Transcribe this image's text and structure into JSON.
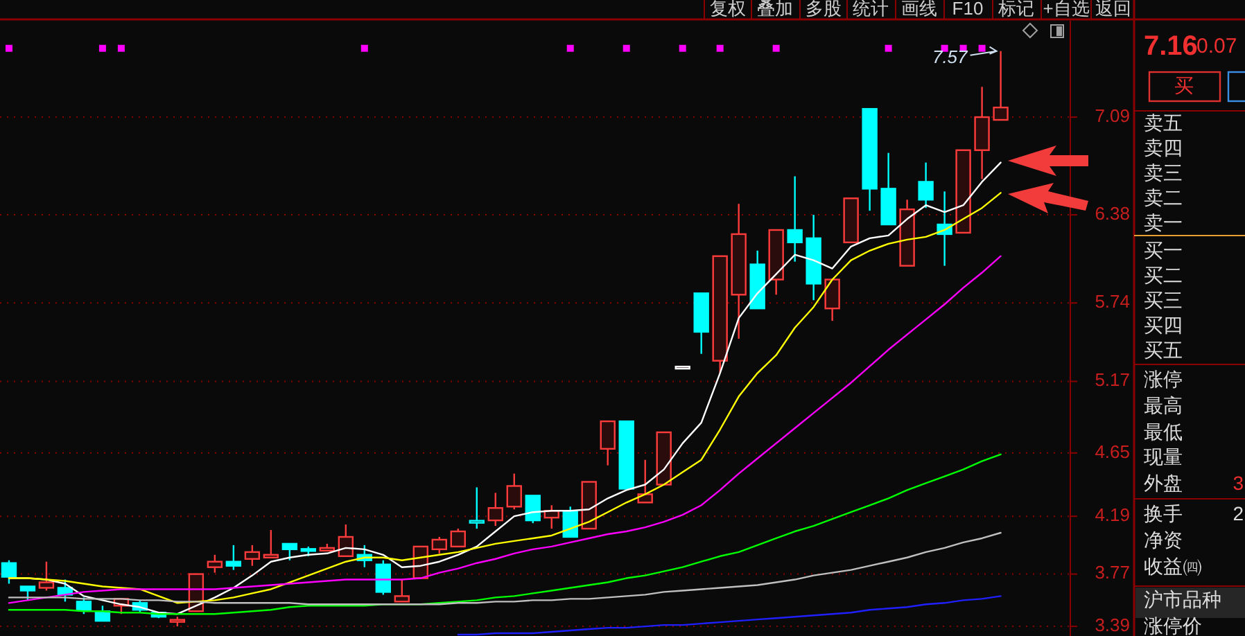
{
  "chart_data": {
    "type": "candlestick",
    "categories": [
      null,
      null,
      null,
      null,
      null,
      null,
      null,
      null,
      null,
      null,
      null,
      null,
      null,
      null,
      null,
      null,
      null,
      null,
      null,
      null,
      null,
      null,
      null,
      null,
      null,
      null,
      null,
      null,
      null,
      null,
      null,
      null,
      null,
      null,
      null,
      null,
      null,
      null,
      null,
      null,
      null,
      null,
      null,
      null,
      null,
      null,
      null,
      null,
      null,
      null,
      null,
      null,
      null,
      null
    ],
    "ohlc": [
      [
        3.85,
        3.87,
        3.7,
        3.75
      ],
      [
        3.68,
        3.68,
        3.58,
        3.65
      ],
      [
        3.67,
        3.86,
        3.65,
        3.71
      ],
      [
        3.67,
        3.73,
        3.57,
        3.62
      ],
      [
        3.57,
        3.6,
        3.48,
        3.51
      ],
      [
        3.5,
        3.54,
        3.43,
        3.43
      ],
      [
        3.54,
        3.59,
        3.48,
        3.59
      ],
      [
        3.56,
        3.58,
        3.49,
        3.51
      ],
      [
        3.49,
        3.49,
        3.45,
        3.46
      ],
      [
        3.43,
        3.46,
        3.39,
        3.43
      ],
      [
        3.5,
        3.77,
        3.5,
        3.77
      ],
      [
        3.82,
        3.91,
        3.78,
        3.86
      ],
      [
        3.86,
        3.98,
        3.8,
        3.83
      ],
      [
        3.88,
        3.98,
        3.83,
        3.93
      ],
      [
        3.89,
        4.09,
        3.89,
        3.91
      ],
      [
        3.99,
        3.99,
        3.87,
        3.95
      ],
      [
        3.95,
        3.97,
        3.9,
        3.94
      ],
      [
        3.94,
        3.99,
        3.94,
        3.96
      ],
      [
        3.9,
        4.13,
        3.9,
        4.04
      ],
      [
        3.91,
        3.98,
        3.82,
        3.87
      ],
      [
        3.84,
        3.87,
        3.62,
        3.64
      ],
      [
        3.57,
        3.73,
        3.57,
        3.61
      ],
      [
        3.74,
        3.97,
        3.74,
        3.97
      ],
      [
        3.95,
        4.04,
        3.92,
        4.02
      ],
      [
        3.97,
        4.1,
        3.97,
        4.08
      ],
      [
        4.15,
        4.4,
        4.1,
        4.15
      ],
      [
        4.16,
        4.36,
        4.12,
        4.25
      ],
      [
        4.26,
        4.5,
        4.24,
        4.41
      ],
      [
        4.34,
        4.34,
        4.14,
        4.16
      ],
      [
        4.18,
        4.27,
        4.1,
        4.23
      ],
      [
        4.23,
        4.26,
        4.04,
        4.04
      ],
      [
        4.1,
        4.44,
        4.1,
        4.44
      ],
      [
        4.68,
        4.88,
        4.56,
        4.88
      ],
      [
        4.88,
        4.88,
        4.39,
        4.39
      ],
      [
        4.29,
        4.6,
        4.29,
        4.35
      ],
      [
        4.42,
        4.8,
        4.42,
        4.8
      ],
      [
        5.27,
        5.27,
        5.27,
        5.27
      ],
      [
        5.81,
        5.81,
        5.37,
        5.53
      ],
      [
        5.32,
        6.08,
        5.23,
        6.08
      ],
      [
        5.8,
        6.46,
        5.48,
        6.24
      ],
      [
        6.02,
        6.12,
        5.7,
        5.7
      ],
      [
        5.91,
        6.27,
        5.8,
        6.27
      ],
      [
        6.27,
        6.66,
        6.04,
        6.18
      ],
      [
        6.21,
        6.38,
        5.76,
        5.88
      ],
      [
        5.7,
        5.91,
        5.61,
        5.91
      ],
      [
        6.18,
        6.5,
        6.18,
        6.5
      ],
      [
        7.15,
        7.15,
        6.41,
        6.57
      ],
      [
        6.57,
        6.83,
        6.31,
        6.31
      ],
      [
        6.01,
        6.49,
        6.01,
        6.42
      ],
      [
        6.62,
        6.76,
        6.43,
        6.49
      ],
      [
        6.31,
        6.55,
        6.01,
        6.24
      ],
      [
        6.25,
        6.85,
        6.25,
        6.85
      ],
      [
        6.85,
        7.31,
        6.64,
        7.09
      ],
      [
        7.07,
        7.57,
        7.07,
        7.16
      ]
    ],
    "colors": [
      "#00ffff",
      "#00ffff",
      "#ff3c3c",
      "#00ffff",
      "#00ffff",
      "#00ffff",
      "#ff3c3c",
      "#00ffff",
      "#00ffff",
      "#ff3c3c",
      "#ff3c3c",
      "#ff3c3c",
      "#00ffff",
      "#ff3c3c",
      "#ff3c3c",
      "#00ffff",
      "#00ffff",
      "#ff3c3c",
      "#ff3c3c",
      "#00ffff",
      "#00ffff",
      "#ff3c3c",
      "#ff3c3c",
      "#ff3c3c",
      "#ff3c3c",
      "#00ffff",
      "#ff3c3c",
      "#ff3c3c",
      "#00ffff",
      "#ff3c3c",
      "#00ffff",
      "#ff3c3c",
      "#ff3c3c",
      "#00ffff",
      "#ff3c3c",
      "#ff3c3c",
      "#ffffff",
      "#00ffff",
      "#ff3c3c",
      "#ff3c3c",
      "#00ffff",
      "#ff3c3c",
      "#00ffff",
      "#00ffff",
      "#ff3c3c",
      "#ff3c3c",
      "#00ffff",
      "#00ffff",
      "#ff3c3c",
      "#00ffff",
      "#00ffff",
      "#ff3c3c",
      "#ff3c3c",
      "#ff3c3c"
    ],
    "series": [
      {
        "type": "line",
        "color": "#ffffff",
        "values": [
          3.74,
          3.74,
          3.73,
          3.7,
          3.61,
          3.58,
          3.55,
          3.53,
          3.49,
          3.48,
          3.54,
          3.6,
          3.67,
          3.76,
          3.86,
          3.89,
          3.91,
          3.92,
          3.96,
          3.95,
          3.91,
          3.82,
          3.83,
          3.86,
          3.91,
          3.97,
          4.08,
          4.19,
          4.22,
          4.23,
          4.23,
          4.24,
          4.32,
          4.38,
          4.42,
          4.53,
          4.72,
          4.87,
          5.23,
          5.63,
          5.81,
          5.95,
          6.09,
          6.05,
          5.99,
          6.15,
          6.21,
          6.23,
          6.35,
          6.45,
          6.4,
          6.45,
          6.62,
          6.76
        ]
      },
      {
        "type": "line",
        "color": "#ffff00",
        "values": [
          3.74,
          3.74,
          3.73,
          3.72,
          3.7,
          3.68,
          3.67,
          3.66,
          3.61,
          3.56,
          3.57,
          3.58,
          3.6,
          3.63,
          3.66,
          3.71,
          3.76,
          3.81,
          3.86,
          3.89,
          3.89,
          3.87,
          3.89,
          3.91,
          3.93,
          3.96,
          3.99,
          4.01,
          4.03,
          4.05,
          4.1,
          4.15,
          4.22,
          4.29,
          4.35,
          4.42,
          4.51,
          4.6,
          4.82,
          5.06,
          5.23,
          5.36,
          5.56,
          5.71,
          5.91,
          6.05,
          6.12,
          6.17,
          6.2,
          6.22,
          6.27,
          6.35,
          6.43,
          6.54
        ]
      },
      {
        "type": "line",
        "color": "#ff00ff",
        "values": [
          3.56,
          3.58,
          3.6,
          3.62,
          3.64,
          3.65,
          3.66,
          3.66,
          3.66,
          3.66,
          3.66,
          3.66,
          3.67,
          3.68,
          3.69,
          3.7,
          3.71,
          3.72,
          3.73,
          3.73,
          3.73,
          3.73,
          3.74,
          3.78,
          3.81,
          3.85,
          3.88,
          3.92,
          3.95,
          3.97,
          4.0,
          4.03,
          4.06,
          4.08,
          4.11,
          4.15,
          4.2,
          4.27,
          4.38,
          4.5,
          4.61,
          4.72,
          4.83,
          4.94,
          5.05,
          5.16,
          5.28,
          5.4,
          5.51,
          5.62,
          5.73,
          5.85,
          5.96,
          6.08
        ]
      },
      {
        "type": "line",
        "color": "#00ff00",
        "values": [
          3.51,
          3.51,
          3.51,
          3.51,
          3.5,
          3.5,
          3.49,
          3.49,
          3.48,
          3.48,
          3.48,
          3.48,
          3.49,
          3.5,
          3.51,
          3.53,
          3.54,
          3.54,
          3.54,
          3.54,
          3.55,
          3.55,
          3.55,
          3.56,
          3.57,
          3.58,
          3.6,
          3.61,
          3.63,
          3.65,
          3.67,
          3.69,
          3.71,
          3.74,
          3.76,
          3.79,
          3.82,
          3.86,
          3.9,
          3.93,
          3.98,
          4.03,
          4.08,
          4.12,
          4.17,
          4.22,
          4.27,
          4.32,
          4.38,
          4.43,
          4.48,
          4.53,
          4.59,
          4.64
        ]
      },
      {
        "type": "line",
        "color": "#c0c0c0",
        "values": [
          3.6,
          3.6,
          3.6,
          3.6,
          3.59,
          3.59,
          3.59,
          3.58,
          3.58,
          3.57,
          3.57,
          3.56,
          3.56,
          3.56,
          3.56,
          3.56,
          3.55,
          3.55,
          3.55,
          3.55,
          3.55,
          3.55,
          3.55,
          3.55,
          3.56,
          3.56,
          3.57,
          3.57,
          3.58,
          3.58,
          3.59,
          3.59,
          3.6,
          3.61,
          3.62,
          3.64,
          3.65,
          3.66,
          3.67,
          3.68,
          3.69,
          3.71,
          3.73,
          3.76,
          3.78,
          3.8,
          3.83,
          3.86,
          3.89,
          3.93,
          3.96,
          4.0,
          4.03,
          4.07
        ]
      },
      {
        "type": "line",
        "color": "#2020ff",
        "values": [
          null,
          null,
          null,
          null,
          null,
          null,
          null,
          null,
          null,
          null,
          null,
          null,
          null,
          null,
          null,
          null,
          null,
          null,
          null,
          null,
          null,
          null,
          null,
          null,
          3.33,
          3.33,
          3.34,
          3.34,
          3.34,
          3.35,
          3.36,
          3.37,
          3.38,
          3.38,
          3.39,
          3.4,
          3.4,
          3.41,
          3.42,
          3.43,
          3.44,
          3.45,
          3.46,
          3.47,
          3.48,
          3.49,
          3.51,
          3.52,
          3.53,
          3.55,
          3.56,
          3.58,
          3.59,
          3.61
        ]
      },
      {
        "type": "scatter",
        "color": "#ff00ff",
        "marker": "square",
        "values": [
          7.59,
          null,
          null,
          null,
          null,
          7.59,
          7.59,
          null,
          null,
          null,
          null,
          null,
          null,
          null,
          null,
          null,
          null,
          null,
          null,
          7.59,
          null,
          null,
          null,
          null,
          null,
          null,
          null,
          null,
          null,
          null,
          7.59,
          null,
          null,
          7.59,
          null,
          null,
          7.59,
          null,
          7.59,
          null,
          null,
          7.59,
          null,
          null,
          null,
          null,
          null,
          7.59,
          null,
          null,
          7.59,
          7.59,
          7.59,
          null
        ]
      }
    ],
    "ylim": [
      3.32,
      7.79
    ],
    "yticks": [
      3.39,
      3.77,
      4.19,
      4.65,
      5.17,
      5.74,
      6.38,
      7.09
    ],
    "tick_labels": "y",
    "grid": "y",
    "annotations": [
      "复权",
      "叠加",
      "多股",
      "统计",
      "画线",
      "F10",
      "标记",
      "+自选",
      "返回",
      "7.16",
      "0.07",
      "买",
      "卖五",
      "卖四",
      "卖三",
      "卖二",
      "卖一",
      "买一",
      "买二",
      "买三",
      "买四",
      "买五",
      "涨停",
      "最高",
      "最低",
      "现量",
      "外盘",
      "3",
      "换手",
      "2",
      "净资",
      "收益㈣",
      "沪市品种",
      "涨停价",
      {
        "text": "7.57",
        "y": 7.57
      }
    ]
  }
}
